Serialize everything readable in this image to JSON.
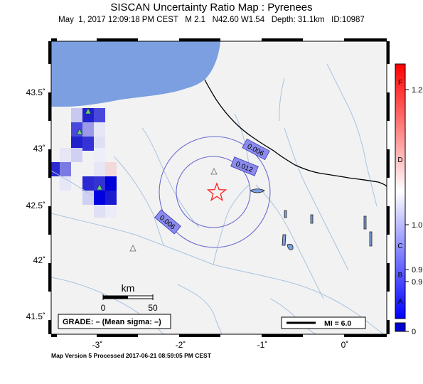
{
  "header": {
    "title": "SISCAN Uncertainty Ratio Map : Pyrenees",
    "subtitle": "May  1, 2017 12:09:18 PM CEST   M 2.1   N42.60 W1.54   Depth: 31.1km   ID:10987"
  },
  "axes": {
    "x_labels": [
      "-3˚",
      "-2˚",
      "-1˚",
      "0˚"
    ],
    "y_labels": [
      "43.5˚",
      "43˚",
      "42.5˚",
      "42˚",
      "41.5˚"
    ]
  },
  "contours": {
    "labels": [
      "0.006",
      "0.012",
      "0.006"
    ]
  },
  "scale_bar": {
    "unit": "km",
    "labels": [
      "0",
      "50"
    ]
  },
  "grade_box": {
    "text": "GRADE: – (Mean sigma: –)"
  },
  "mi_legend": {
    "text": "MI = 6.0"
  },
  "colorbar": {
    "grade_letters": [
      "F",
      "D",
      "C",
      "B",
      "A"
    ],
    "value_labels": [
      "1.2",
      "1.0",
      "0.9",
      "0.9",
      "0"
    ],
    "colors": {
      "low": "#0000ff",
      "mid": "#ffffff",
      "high": "#ff0000",
      "bottom_box": "#0000d0"
    }
  },
  "colors": {
    "sea": "#7b9fe0",
    "land": "#f2f2f2",
    "rivers": "#a9c3e0",
    "contours": "#6a6ad0",
    "epicenter": "#ff2020",
    "station": "#66cc88"
  },
  "footer": "Map Version 5 Processed 2017-06-21 08:59:05 PM CEST"
}
